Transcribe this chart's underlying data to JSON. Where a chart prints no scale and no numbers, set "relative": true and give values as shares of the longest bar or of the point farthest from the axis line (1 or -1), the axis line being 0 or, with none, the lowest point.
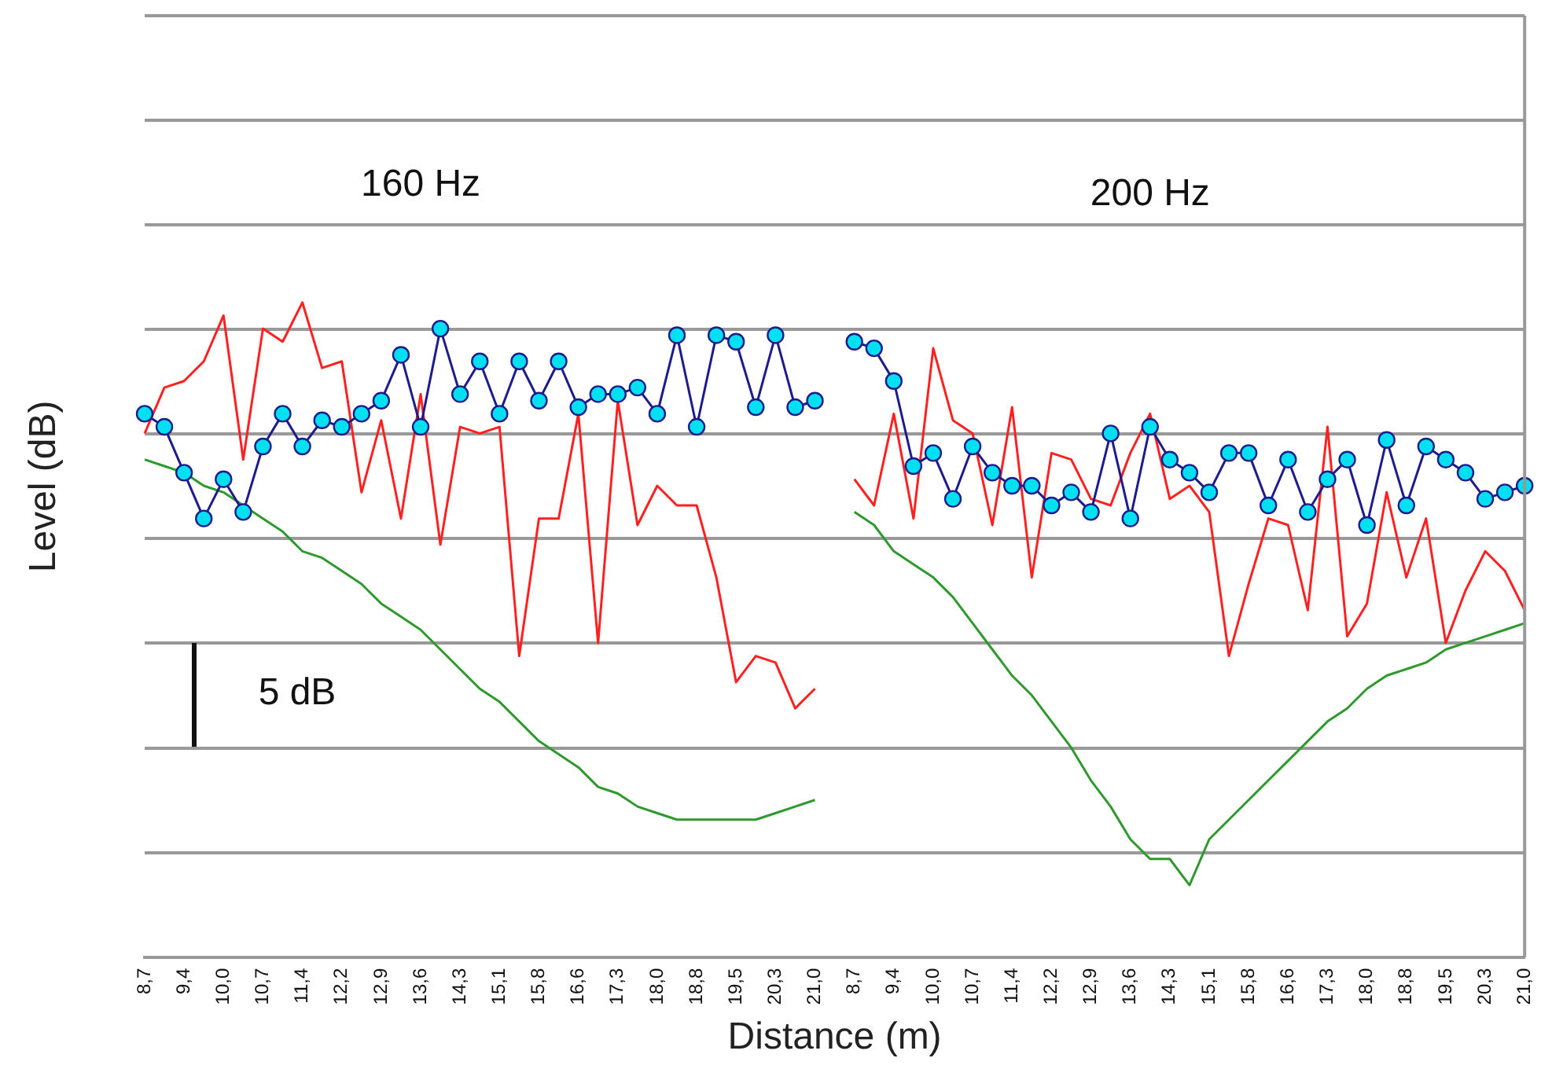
{
  "chart_data": {
    "type": "line",
    "relative": true,
    "xlabel": "Distance (m)",
    "ylabel": "Level (dB)",
    "grid": "y",
    "legend": false,
    "annotations": [
      "160 Hz",
      "200 Hz",
      "5 dB"
    ],
    "categories": [
      "8,7",
      null,
      "9,4",
      null,
      "10,0",
      null,
      "10,7",
      null,
      "11,4",
      null,
      "12,2",
      null,
      "12,9",
      null,
      "13,6",
      null,
      "14,3",
      null,
      "15,1",
      null,
      "15,8",
      null,
      "16,6",
      null,
      "17,3",
      null,
      "18,0",
      null,
      "18,8",
      null,
      "19,5",
      null,
      "20,3",
      null,
      "21,0",
      null,
      "8,7",
      null,
      "9,4",
      null,
      "10,0",
      null,
      "10,7",
      null,
      "11,4",
      null,
      "12,2",
      null,
      "12,9",
      null,
      "13,6",
      null,
      "14,3",
      null,
      "15,1",
      null,
      "15,8",
      null,
      "16,6",
      null,
      "17,3",
      null,
      "18,0",
      null,
      "18,8",
      null,
      "19,5",
      null,
      "20,3",
      null,
      "21,0"
    ],
    "series": [
      {
        "color": "#1c1c8c",
        "marker": "circle",
        "values": [
          0.83,
          0.81,
          0.74,
          0.67,
          0.73,
          0.68,
          0.78,
          0.83,
          0.78,
          0.82,
          0.81,
          0.83,
          0.85,
          0.92,
          0.81,
          0.96,
          0.86,
          0.91,
          0.83,
          0.91,
          0.85,
          0.91,
          0.84,
          0.86,
          0.86,
          0.87,
          0.83,
          0.95,
          0.81,
          0.95,
          0.94,
          0.84,
          0.95,
          0.84,
          0.85,
          null,
          0.94,
          0.93,
          0.88,
          0.75,
          0.77,
          0.7,
          0.78,
          0.74,
          0.72,
          0.72,
          0.69,
          0.71,
          0.68,
          0.8,
          0.67,
          0.81,
          0.76,
          0.74,
          0.71,
          0.77,
          0.77,
          0.69,
          0.76,
          0.68,
          0.73,
          0.76,
          0.66,
          0.79,
          0.69,
          0.78,
          0.76,
          0.74,
          0.7,
          0.71,
          0.72
        ]
      },
      {
        "color": "#ff2020",
        "values": [
          0.8,
          0.87,
          0.88,
          0.91,
          0.98,
          0.76,
          0.96,
          0.94,
          1.0,
          0.9,
          0.91,
          0.71,
          0.82,
          0.67,
          0.86,
          0.63,
          0.81,
          0.8,
          0.81,
          0.46,
          0.67,
          0.67,
          0.83,
          0.48,
          0.85,
          0.66,
          0.72,
          0.69,
          0.69,
          0.58,
          0.42,
          0.46,
          0.45,
          0.38,
          0.41,
          null,
          0.73,
          0.69,
          0.83,
          0.67,
          0.93,
          0.82,
          0.8,
          0.66,
          0.84,
          0.58,
          0.77,
          0.76,
          0.7,
          0.69,
          0.77,
          0.83,
          0.7,
          0.72,
          0.68,
          0.46,
          0.57,
          0.67,
          0.66,
          0.53,
          0.81,
          0.49,
          0.54,
          0.71,
          0.58,
          0.67,
          0.48,
          0.56,
          0.62,
          0.59,
          0.53
        ]
      },
      {
        "color": "#2e9a2e",
        "values": [
          0.76,
          0.75,
          0.74,
          0.72,
          0.71,
          0.69,
          0.67,
          0.65,
          0.62,
          0.61,
          0.59,
          0.57,
          0.54,
          0.52,
          0.5,
          0.47,
          0.44,
          0.41,
          0.39,
          0.36,
          0.33,
          0.31,
          0.29,
          0.26,
          0.25,
          0.23,
          0.22,
          0.21,
          0.21,
          0.21,
          0.21,
          0.21,
          0.22,
          0.23,
          0.24,
          null,
          0.68,
          0.66,
          0.62,
          0.6,
          0.58,
          0.55,
          0.51,
          0.47,
          0.43,
          0.4,
          0.36,
          0.32,
          0.27,
          0.23,
          0.18,
          0.15,
          0.15,
          0.11,
          0.18,
          0.21,
          0.24,
          0.27,
          0.3,
          0.33,
          0.36,
          0.38,
          0.41,
          0.43,
          0.44,
          0.45,
          0.47,
          0.48,
          0.49,
          0.5,
          0.51
        ]
      }
    ]
  }
}
